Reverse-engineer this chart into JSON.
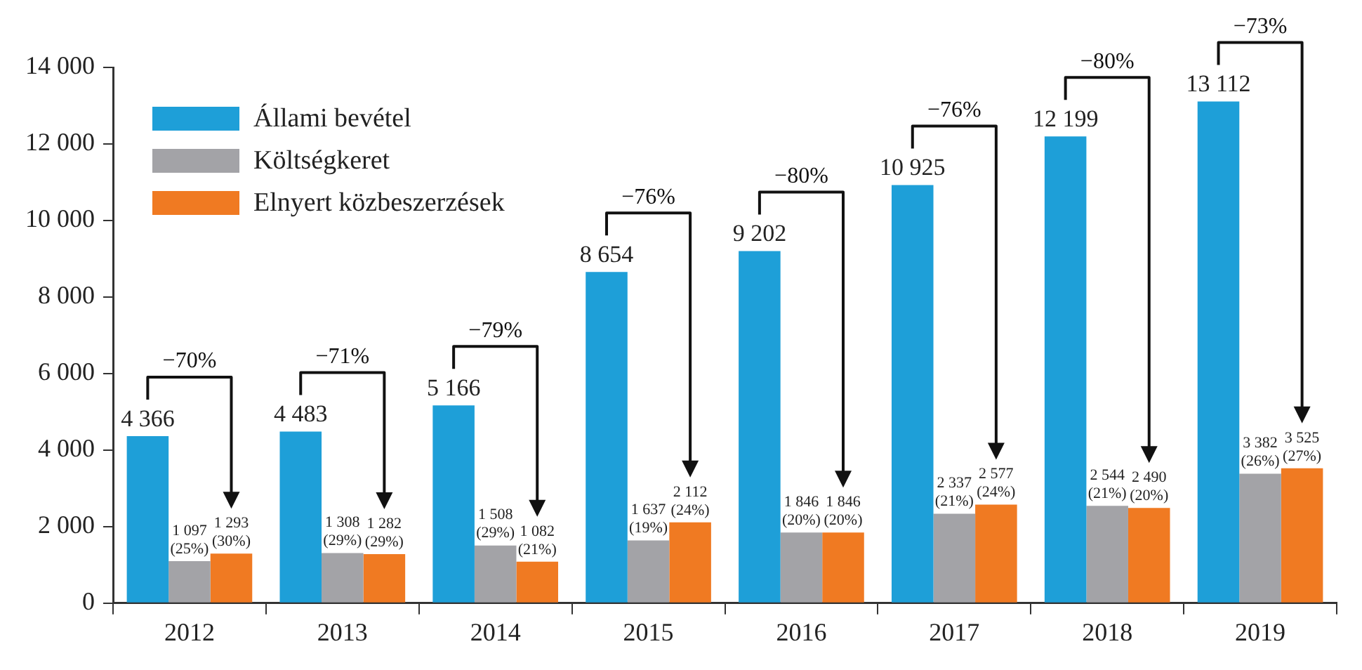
{
  "chart_data": {
    "type": "bar",
    "categories": [
      "2012",
      "2013",
      "2014",
      "2015",
      "2016",
      "2017",
      "2018",
      "2019"
    ],
    "series": [
      {
        "name": "Állami bevétel",
        "color": "#1e9fd8",
        "values": [
          4366,
          4483,
          5166,
          8654,
          9202,
          10925,
          12199,
          13112
        ],
        "value_labels": [
          "4 366",
          "4 483",
          "5 166",
          "8 654",
          "9 202",
          "10 925",
          "12 199",
          "13 112"
        ]
      },
      {
        "name": "Költségkeret",
        "color": "#a3a3a7",
        "values": [
          1097,
          1308,
          1508,
          1637,
          1846,
          2337,
          2544,
          3382
        ],
        "value_labels": [
          "1 097 (25%)",
          "1 308 (29%)",
          "1 508 (29%)",
          "1 637 (19%)",
          "1 846 (20%)",
          "2 337 (21%)",
          "2 544 (21%)",
          "3 382 (26%)"
        ]
      },
      {
        "name": "Elnyert közbeszerzések",
        "color": "#f07a22",
        "values": [
          1293,
          1282,
          1082,
          2112,
          1846,
          2577,
          2490,
          3525
        ],
        "value_labels": [
          "1 293 (30%)",
          "1 282 (29%)",
          "1 082 (21%)",
          "2 112 (24%)",
          "1 846 (20%)",
          "2 577 (24%)",
          "2 490 (20%)",
          "3 525 (27%)"
        ]
      }
    ],
    "ylim": [
      0,
      14000
    ],
    "yticks": [
      {
        "value": 0,
        "label": "0"
      },
      {
        "value": 2000,
        "label": "2 000"
      },
      {
        "value": 4000,
        "label": "4 000"
      },
      {
        "value": 6000,
        "label": "6 000"
      },
      {
        "value": 8000,
        "label": "8 000"
      },
      {
        "value": 10000,
        "label": "10 000"
      },
      {
        "value": 12000,
        "label": "12 000"
      },
      {
        "value": 14000,
        "label": "14 000"
      }
    ],
    "legend": "top left",
    "annotations": [
      "−70%",
      "−71%",
      "−79%",
      "−76%",
      "−80%",
      "−76%",
      "−80%",
      "−73%"
    ]
  }
}
